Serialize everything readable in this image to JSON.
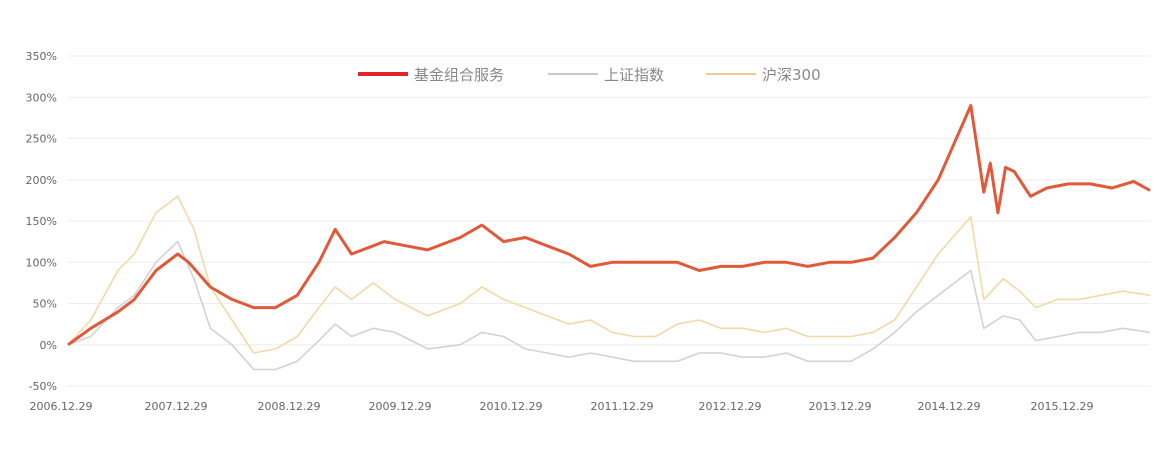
{
  "chart_data": {
    "type": "line",
    "title": "",
    "xlabel": "",
    "ylabel": "",
    "x_ticks": [
      "2006.12.29",
      "2007.12.29",
      "2008.12.29",
      "2009.12.29",
      "2010.12.29",
      "2011.12.29",
      "2012.12.29",
      "2013.12.29",
      "2014.12.29",
      "2015.12.29"
    ],
    "y_ticks": [
      "-50%",
      "0%",
      "50%",
      "100%",
      "150%",
      "200%",
      "250%",
      "300%",
      "350%"
    ],
    "ylim": [
      -50,
      350
    ],
    "xlim": [
      2006.99,
      2016.95
    ],
    "grid": true,
    "legend_position": "top-center",
    "series": [
      {
        "name": "基金组合服务",
        "color": "#e05a3a",
        "x": [
          2006.99,
          2007.2,
          2007.45,
          2007.6,
          2007.8,
          2008.0,
          2008.1,
          2008.3,
          2008.5,
          2008.7,
          2008.9,
          2009.1,
          2009.3,
          2009.45,
          2009.6,
          2009.8,
          2009.9,
          2010.1,
          2010.3,
          2010.6,
          2010.8,
          2011.0,
          2011.2,
          2011.4,
          2011.6,
          2011.8,
          2012.0,
          2012.2,
          2012.4,
          2012.6,
          2012.8,
          2013.0,
          2013.2,
          2013.4,
          2013.6,
          2013.8,
          2014.0,
          2014.2,
          2014.4,
          2014.6,
          2014.8,
          2015.0,
          2015.3,
          2015.42,
          2015.48,
          2015.55,
          2015.62,
          2015.7,
          2015.85,
          2016.0,
          2016.2,
          2016.4,
          2016.6,
          2016.8,
          2016.95
        ],
        "values": [
          0,
          20,
          40,
          55,
          90,
          110,
          100,
          70,
          55,
          45,
          45,
          60,
          100,
          140,
          110,
          120,
          125,
          120,
          115,
          130,
          145,
          125,
          130,
          120,
          110,
          95,
          100,
          100,
          100,
          100,
          90,
          95,
          95,
          100,
          100,
          95,
          100,
          100,
          105,
          130,
          160,
          200,
          290,
          185,
          220,
          160,
          215,
          210,
          180,
          190,
          195,
          195,
          190,
          198,
          187
        ]
      },
      {
        "name": "上证指数",
        "color": "#d2d2d2",
        "x": [
          2006.99,
          2007.2,
          2007.45,
          2007.6,
          2007.8,
          2008.0,
          2008.15,
          2008.3,
          2008.5,
          2008.7,
          2008.9,
          2009.1,
          2009.3,
          2009.45,
          2009.6,
          2009.8,
          2010.0,
          2010.3,
          2010.6,
          2010.8,
          2011.0,
          2011.2,
          2011.4,
          2011.6,
          2011.8,
          2012.0,
          2012.2,
          2012.4,
          2012.6,
          2012.8,
          2013.0,
          2013.2,
          2013.4,
          2013.6,
          2013.8,
          2014.0,
          2014.2,
          2014.4,
          2014.6,
          2014.8,
          2015.0,
          2015.3,
          2015.42,
          2015.6,
          2015.75,
          2015.9,
          2016.1,
          2016.3,
          2016.5,
          2016.7,
          2016.95
        ],
        "values": [
          0,
          10,
          45,
          60,
          100,
          125,
          80,
          20,
          0,
          -30,
          -30,
          -20,
          5,
          25,
          10,
          20,
          15,
          -5,
          0,
          15,
          10,
          -5,
          -10,
          -15,
          -10,
          -15,
          -20,
          -20,
          -20,
          -10,
          -10,
          -15,
          -15,
          -10,
          -20,
          -20,
          -20,
          -5,
          15,
          40,
          60,
          90,
          20,
          35,
          30,
          5,
          10,
          15,
          15,
          20,
          15
        ]
      },
      {
        "name": "沪深300",
        "color": "#f2d9a6",
        "x": [
          2006.99,
          2007.2,
          2007.45,
          2007.6,
          2007.8,
          2008.0,
          2008.15,
          2008.3,
          2008.5,
          2008.7,
          2008.9,
          2009.1,
          2009.3,
          2009.45,
          2009.6,
          2009.8,
          2010.0,
          2010.3,
          2010.6,
          2010.8,
          2011.0,
          2011.2,
          2011.4,
          2011.6,
          2011.8,
          2012.0,
          2012.2,
          2012.4,
          2012.6,
          2012.8,
          2013.0,
          2013.2,
          2013.4,
          2013.6,
          2013.8,
          2014.0,
          2014.2,
          2014.4,
          2014.6,
          2014.8,
          2015.0,
          2015.3,
          2015.42,
          2015.6,
          2015.75,
          2015.9,
          2016.1,
          2016.3,
          2016.5,
          2016.7,
          2016.95
        ],
        "values": [
          0,
          30,
          90,
          110,
          160,
          180,
          140,
          70,
          30,
          -10,
          -5,
          10,
          45,
          70,
          55,
          75,
          55,
          35,
          50,
          70,
          55,
          45,
          35,
          25,
          30,
          15,
          10,
          10,
          25,
          30,
          20,
          20,
          15,
          20,
          10,
          10,
          10,
          15,
          30,
          70,
          110,
          155,
          55,
          80,
          65,
          45,
          55,
          55,
          60,
          65,
          60
        ]
      }
    ]
  }
}
